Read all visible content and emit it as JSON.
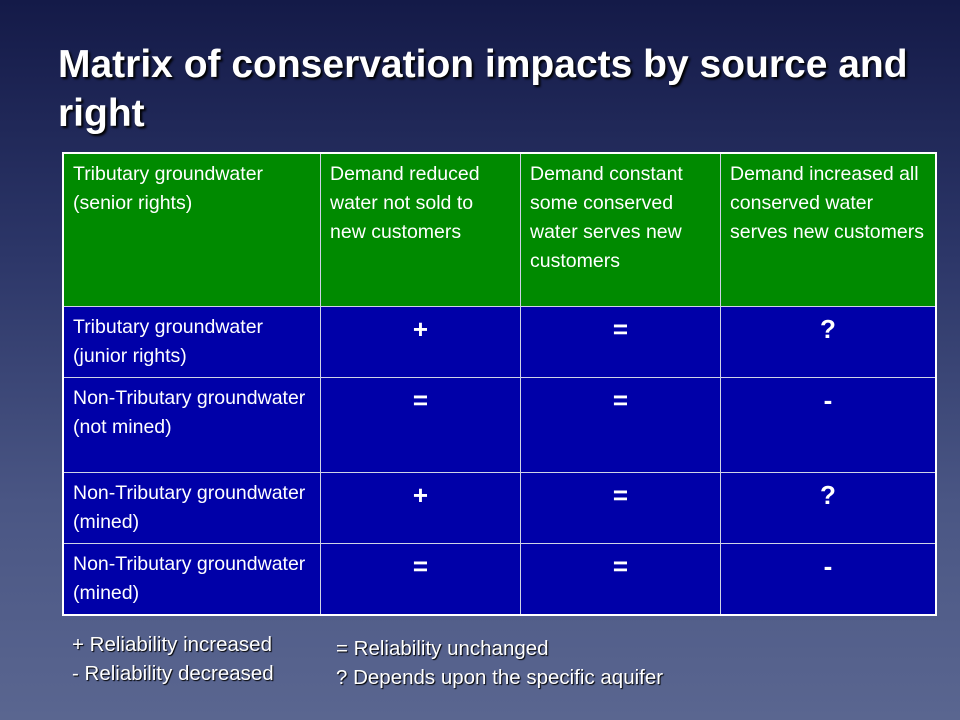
{
  "title": "Matrix of conservation impacts by source and right",
  "table": {
    "header": [
      "Tributary groundwater (senior rights)",
      "Demand reduced water not sold to new customers",
      "Demand constant some conserved water serves new customers",
      "Demand increased all conserved water serves new customers"
    ],
    "rows": [
      [
        "Tributary groundwater (junior rights)",
        "+",
        "=",
        "?"
      ],
      [
        "Non-Tributary groundwater (not mined)",
        "=",
        "=",
        "-"
      ],
      [
        "Non-Tributary groundwater (mined)",
        "+",
        "=",
        "?"
      ],
      [
        "Non-Tributary groundwater (mined)",
        "=",
        "=",
        "-"
      ]
    ]
  },
  "legend": {
    "left": [
      "+ Reliability increased",
      "- Reliability decreased"
    ],
    "right": [
      "= Reliability unchanged",
      "? Depends upon the specific aquifer"
    ]
  },
  "colors": {
    "header": "#008a00",
    "body": "#0000a8"
  }
}
